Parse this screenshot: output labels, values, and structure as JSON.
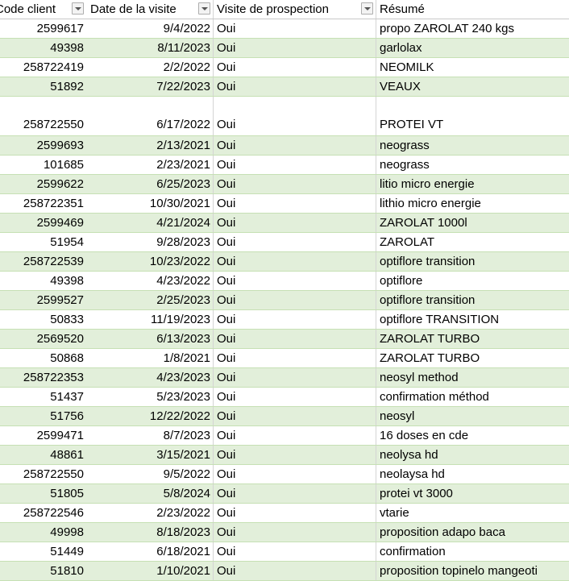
{
  "columns": {
    "code_client": "Code client",
    "date_visite": "Date de la visite",
    "visite_prospection": "Visite de prospection",
    "resume": "Résumé"
  },
  "rows": [
    {
      "code": "2599617",
      "date": "9/4/2022",
      "visite": "Oui",
      "resume": "propo ZAROLAT 240 kgs"
    },
    {
      "code": "49398",
      "date": "8/11/2023",
      "visite": "Oui",
      "resume": "garlolax"
    },
    {
      "code": "258722419",
      "date": "2/2/2022",
      "visite": "Oui",
      "resume": "NEOMILK"
    },
    {
      "code": "51892",
      "date": "7/22/2023",
      "visite": "Oui",
      "resume": "VEAUX"
    },
    {
      "code": "258722550",
      "date": "6/17/2022",
      "visite": "Oui",
      "resume": "PROTEI VT"
    },
    {
      "code": "2599693",
      "date": "2/13/2021",
      "visite": "Oui",
      "resume": "neograss"
    },
    {
      "code": "101685",
      "date": "2/23/2021",
      "visite": "Oui",
      "resume": "neograss"
    },
    {
      "code": "2599622",
      "date": "6/25/2023",
      "visite": "Oui",
      "resume": "litio micro energie"
    },
    {
      "code": "258722351",
      "date": "10/30/2021",
      "visite": "Oui",
      "resume": "lithio micro energie"
    },
    {
      "code": "2599469",
      "date": "4/21/2024",
      "visite": "Oui",
      "resume": "ZAROLAT 1000l"
    },
    {
      "code": "51954",
      "date": "9/28/2023",
      "visite": "Oui",
      "resume": "ZAROLAT"
    },
    {
      "code": "258722539",
      "date": "10/23/2022",
      "visite": "Oui",
      "resume": "optiflore transition"
    },
    {
      "code": "49398",
      "date": "4/23/2022",
      "visite": "Oui",
      "resume": "optiflore"
    },
    {
      "code": "2599527",
      "date": "2/25/2023",
      "visite": "Oui",
      "resume": "optiflore transition"
    },
    {
      "code": "50833",
      "date": "11/19/2023",
      "visite": "Oui",
      "resume": "optiflore TRANSITION"
    },
    {
      "code": "2569520",
      "date": "6/13/2023",
      "visite": "Oui",
      "resume": "ZAROLAT TURBO"
    },
    {
      "code": "50868",
      "date": "1/8/2021",
      "visite": "Oui",
      "resume": "ZAROLAT TURBO"
    },
    {
      "code": "258722353",
      "date": "4/23/2023",
      "visite": "Oui",
      "resume": "neosyl method"
    },
    {
      "code": "51437",
      "date": "5/23/2023",
      "visite": "Oui",
      "resume": "confirmation méthod"
    },
    {
      "code": "51756",
      "date": "12/22/2022",
      "visite": "Oui",
      "resume": "neosyl"
    },
    {
      "code": "2599471",
      "date": "8/7/2023",
      "visite": "Oui",
      "resume": "16 doses en cde"
    },
    {
      "code": "48861",
      "date": "3/15/2021",
      "visite": "Oui",
      "resume": "neolysa hd"
    },
    {
      "code": "258722550",
      "date": "9/5/2022",
      "visite": "Oui",
      "resume": "neolaysa hd"
    },
    {
      "code": "51805",
      "date": "5/8/2024",
      "visite": "Oui",
      "resume": "protei vt 3000"
    },
    {
      "code": "258722546",
      "date": "2/23/2022",
      "visite": "Oui",
      "resume": "vtarie"
    },
    {
      "code": "49998",
      "date": "8/18/2023",
      "visite": "Oui",
      "resume": "proposition adapo baca"
    },
    {
      "code": "51449",
      "date": "6/18/2021",
      "visite": "Oui",
      "resume": "confirmation"
    },
    {
      "code": "51810",
      "date": "1/10/2021",
      "visite": "Oui",
      "resume": "proposition topinelo mangeoti"
    }
  ],
  "icons": {
    "filter": "filter-dropdown-icon"
  },
  "colors": {
    "band": "#e2efda",
    "row_border": "#c6e0b4"
  }
}
